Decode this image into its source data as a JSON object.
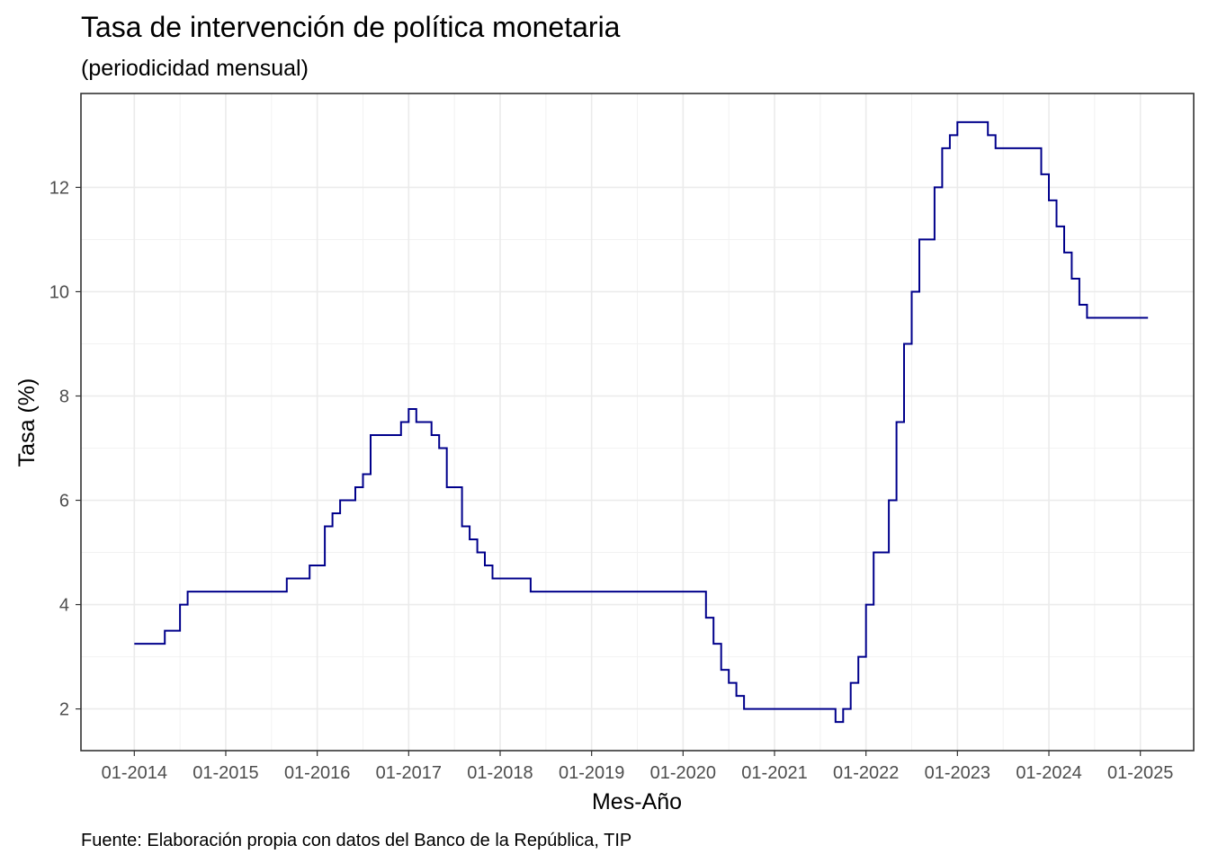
{
  "chart_data": {
    "type": "line",
    "step": true,
    "title": "Tasa de intervención de política monetaria",
    "subtitle": "(periodicidad mensual)",
    "xlabel": "Mes-Año",
    "ylabel": "Tasa (%)",
    "caption": "Fuente: Elaboración propia con datos del Banco de la República, TIP",
    "xlim": [
      "2013-06",
      "2025-08"
    ],
    "ylim": [
      1.2,
      13.8
    ],
    "x_ticks": [
      "01-2014",
      "01-2015",
      "01-2016",
      "01-2017",
      "01-2018",
      "01-2019",
      "01-2020",
      "01-2021",
      "01-2022",
      "01-2023",
      "01-2024",
      "01-2025"
    ],
    "y_ticks": [
      2,
      4,
      6,
      8,
      10,
      12
    ],
    "grid": true,
    "line_color": "#00008B",
    "series": [
      {
        "name": "",
        "x": [
          "2014-01",
          "2014-04",
          "2014-05",
          "2014-06",
          "2014-07",
          "2014-08",
          "2015-09",
          "2015-10",
          "2015-12",
          "2016-01",
          "2016-02",
          "2016-03",
          "2016-04",
          "2016-06",
          "2016-07",
          "2016-08",
          "2016-12",
          "2017-01",
          "2017-02",
          "2017-04",
          "2017-05",
          "2017-06",
          "2017-07",
          "2017-08",
          "2017-09",
          "2017-10",
          "2017-11",
          "2017-12",
          "2018-03",
          "2018-05",
          "2020-03",
          "2020-04",
          "2020-05",
          "2020-06",
          "2020-07",
          "2020-08",
          "2020-09",
          "2021-09",
          "2021-10",
          "2021-11",
          "2021-12",
          "2022-01",
          "2022-02",
          "2022-04",
          "2022-05",
          "2022-06",
          "2022-07",
          "2022-08",
          "2022-10",
          "2022-11",
          "2022-12",
          "2023-01",
          "2023-02",
          "2023-04",
          "2023-05",
          "2023-06",
          "2023-12",
          "2024-01",
          "2024-02",
          "2024-03",
          "2024-04",
          "2024-05",
          "2024-06",
          "2024-07",
          "2024-08",
          "2024-09",
          "2024-10",
          "2024-11",
          "2024-12",
          "2025-01",
          "2025-02"
        ],
        "values": [
          3.25,
          3.25,
          3.5,
          3.5,
          4.0,
          4.25,
          4.5,
          4.5,
          4.75,
          4.75,
          5.5,
          5.75,
          6.0,
          6.25,
          6.5,
          7.25,
          7.5,
          7.75,
          7.5,
          7.25,
          7.0,
          6.25,
          6.25,
          5.5,
          5.25,
          5.0,
          4.75,
          4.5,
          4.5,
          4.25,
          4.25,
          3.75,
          3.25,
          2.75,
          2.5,
          2.25,
          2.0,
          1.75,
          2.0,
          2.5,
          3.0,
          4.0,
          5.0,
          6.0,
          7.5,
          9.0,
          10.0,
          11.0,
          12.0,
          12.75,
          13.0,
          13.25,
          13.25,
          13.25,
          13.0,
          12.75,
          12.25,
          11.75,
          11.25,
          10.75,
          10.25,
          9.75,
          9.5,
          9.5,
          9.5,
          9.5,
          9.5,
          9.5,
          9.5,
          9.5,
          9.5
        ]
      }
    ]
  }
}
